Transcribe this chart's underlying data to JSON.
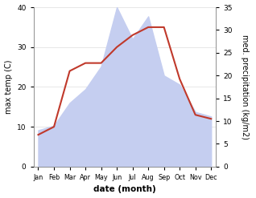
{
  "months": [
    "Jan",
    "Feb",
    "Mar",
    "Apr",
    "May",
    "Jun",
    "Jul",
    "Aug",
    "Sep",
    "Oct",
    "Nov",
    "Dec"
  ],
  "month_indices": [
    0,
    1,
    2,
    3,
    4,
    5,
    6,
    7,
    8,
    9,
    10,
    11
  ],
  "temperature": [
    8,
    10,
    24,
    26,
    26,
    30,
    33,
    35,
    35,
    22,
    13,
    12
  ],
  "precipitation": [
    8,
    9,
    14,
    17,
    22,
    35,
    28,
    33,
    20,
    18,
    12,
    11
  ],
  "temp_color": "#c0392b",
  "precip_fill_color": "#c5cef0",
  "left_ylim": [
    0,
    40
  ],
  "right_ylim": [
    0,
    35
  ],
  "left_yticks": [
    0,
    10,
    20,
    30,
    40
  ],
  "right_yticks": [
    0,
    5,
    10,
    15,
    20,
    25,
    30,
    35
  ],
  "xlabel": "date (month)",
  "ylabel_left": "max temp (C)",
  "ylabel_right": "med. precipitation (kg/m2)",
  "fig_width": 3.18,
  "fig_height": 2.47,
  "dpi": 100
}
